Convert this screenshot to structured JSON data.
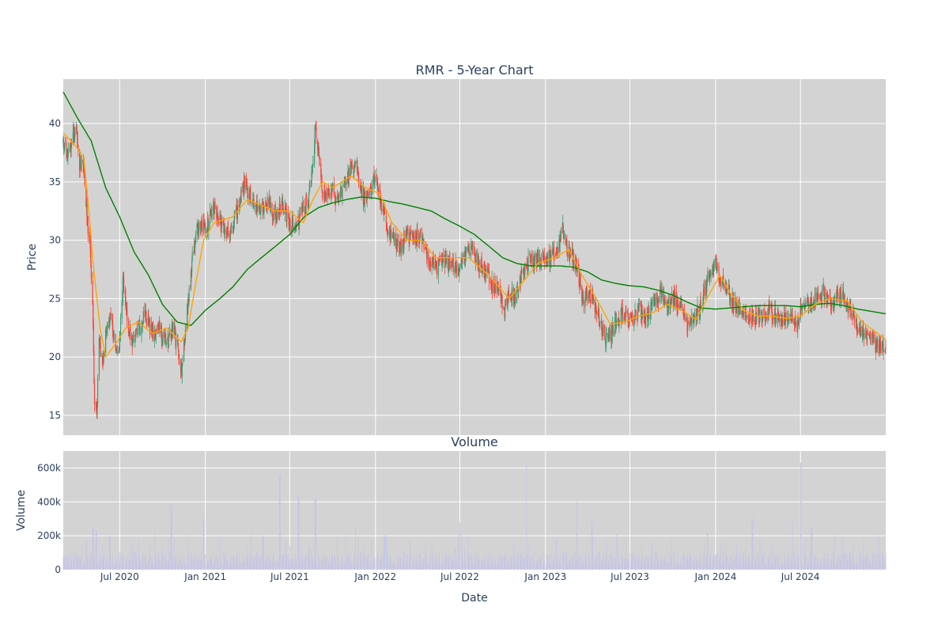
{
  "chart_data": [
    {
      "type": "candlestick",
      "title": "RMR - 5-Year Chart",
      "ylabel": "Price",
      "xlabel": "",
      "ylim": [
        13.3,
        43.8
      ],
      "x_range": [
        "2020-03-02",
        "2024-12-31"
      ],
      "y_ticks": [
        15,
        20,
        25,
        30,
        35,
        40
      ],
      "grid": true,
      "background": "#d3d3d3",
      "colors": {
        "up": "#3d9970",
        "down": "#ff4136",
        "ma_short": "#ffa500",
        "ma_long": "#008000"
      },
      "price_anchors": [
        [
          "2020-03-02",
          38.5
        ],
        [
          "2020-03-10",
          37.0
        ],
        [
          "2020-03-20",
          38.3
        ],
        [
          "2020-03-30",
          40.0
        ],
        [
          "2020-04-06",
          36.3
        ],
        [
          "2020-04-14",
          36.4
        ],
        [
          "2020-04-22",
          31.8
        ],
        [
          "2020-04-28",
          29.5
        ],
        [
          "2020-05-04",
          24.0
        ],
        [
          "2020-05-08",
          16.5
        ],
        [
          "2020-05-13",
          15.2
        ],
        [
          "2020-05-18",
          21.5
        ],
        [
          "2020-05-25",
          19.5
        ],
        [
          "2020-06-01",
          22.0
        ],
        [
          "2020-06-10",
          23.5
        ],
        [
          "2020-06-20",
          21.0
        ],
        [
          "2020-06-28",
          19.5
        ],
        [
          "2020-07-08",
          26.5
        ],
        [
          "2020-07-18",
          23.0
        ],
        [
          "2020-07-30",
          21.0
        ],
        [
          "2020-08-10",
          22.5
        ],
        [
          "2020-08-25",
          23.5
        ],
        [
          "2020-09-10",
          22.0
        ],
        [
          "2020-09-25",
          22.5
        ],
        [
          "2020-10-10",
          21.0
        ],
        [
          "2020-10-25",
          22.5
        ],
        [
          "2020-11-05",
          20.0
        ],
        [
          "2020-11-12",
          18.8
        ],
        [
          "2020-11-20",
          23.0
        ],
        [
          "2020-11-28",
          25.5
        ],
        [
          "2020-12-05",
          29.0
        ],
        [
          "2020-12-18",
          31.5
        ],
        [
          "2021-01-05",
          31.0
        ],
        [
          "2021-01-18",
          33.0
        ],
        [
          "2021-02-05",
          31.5
        ],
        [
          "2021-02-22",
          30.5
        ],
        [
          "2021-03-10",
          32.5
        ],
        [
          "2021-03-25",
          35.0
        ],
        [
          "2021-04-10",
          33.5
        ],
        [
          "2021-04-28",
          32.5
        ],
        [
          "2021-05-15",
          33.5
        ],
        [
          "2021-06-01",
          32.0
        ],
        [
          "2021-06-15",
          33.0
        ],
        [
          "2021-07-01",
          31.5
        ],
        [
          "2021-07-15",
          31.0
        ],
        [
          "2021-07-28",
          32.5
        ],
        [
          "2021-08-10",
          33.5
        ],
        [
          "2021-08-18",
          36.0
        ],
        [
          "2021-08-25",
          39.5
        ],
        [
          "2021-09-01",
          37.5
        ],
        [
          "2021-09-10",
          33.5
        ],
        [
          "2021-09-25",
          34.5
        ],
        [
          "2021-10-10",
          33.5
        ],
        [
          "2021-10-28",
          35.0
        ],
        [
          "2021-11-10",
          36.0
        ],
        [
          "2021-11-20",
          36.8
        ],
        [
          "2021-12-05",
          33.5
        ],
        [
          "2021-12-20",
          34.0
        ],
        [
          "2022-01-01",
          35.5
        ],
        [
          "2022-01-12",
          33.5
        ],
        [
          "2022-01-25",
          31.0
        ],
        [
          "2022-02-10",
          30.0
        ],
        [
          "2022-02-25",
          29.5
        ],
        [
          "2022-03-10",
          30.5
        ],
        [
          "2022-03-25",
          30.0
        ],
        [
          "2022-04-10",
          30.5
        ],
        [
          "2022-04-25",
          28.5
        ],
        [
          "2022-05-10",
          27.5
        ],
        [
          "2022-05-25",
          28.5
        ],
        [
          "2022-06-10",
          28.0
        ],
        [
          "2022-06-25",
          27.5
        ],
        [
          "2022-07-10",
          28.5
        ],
        [
          "2022-07-25",
          29.5
        ],
        [
          "2022-08-10",
          28.0
        ],
        [
          "2022-08-25",
          27.5
        ],
        [
          "2022-09-10",
          26.0
        ],
        [
          "2022-09-25",
          25.5
        ],
        [
          "2022-10-05",
          24.0
        ],
        [
          "2022-10-15",
          25.5
        ],
        [
          "2022-10-28",
          25.0
        ],
        [
          "2022-11-10",
          27.0
        ],
        [
          "2022-11-25",
          28.0
        ],
        [
          "2022-12-10",
          28.5
        ],
        [
          "2022-12-28",
          28.5
        ],
        [
          "2023-01-10",
          28.5
        ],
        [
          "2023-01-25",
          29.0
        ],
        [
          "2023-02-07",
          31.0
        ],
        [
          "2023-02-18",
          29.0
        ],
        [
          "2023-03-01",
          28.5
        ],
        [
          "2023-03-12",
          27.0
        ],
        [
          "2023-03-22",
          25.0
        ],
        [
          "2023-04-05",
          25.5
        ],
        [
          "2023-04-20",
          24.0
        ],
        [
          "2023-05-01",
          22.5
        ],
        [
          "2023-05-10",
          21.5
        ],
        [
          "2023-05-22",
          22.0
        ],
        [
          "2023-06-05",
          23.5
        ],
        [
          "2023-06-20",
          23.5
        ],
        [
          "2023-07-05",
          23.0
        ],
        [
          "2023-07-20",
          24.0
        ],
        [
          "2023-08-05",
          23.0
        ],
        [
          "2023-08-20",
          24.5
        ],
        [
          "2023-09-05",
          25.5
        ],
        [
          "2023-09-20",
          24.5
        ],
        [
          "2023-10-05",
          25.0
        ],
        [
          "2023-10-20",
          24.0
        ],
        [
          "2023-11-01",
          22.5
        ],
        [
          "2023-11-15",
          23.5
        ],
        [
          "2023-11-28",
          24.0
        ],
        [
          "2023-12-10",
          26.0
        ],
        [
          "2023-12-20",
          27.5
        ],
        [
          "2024-01-01",
          28.0
        ],
        [
          "2024-01-12",
          26.5
        ],
        [
          "2024-01-25",
          26.0
        ],
        [
          "2024-02-08",
          24.5
        ],
        [
          "2024-02-25",
          24.0
        ],
        [
          "2024-03-10",
          23.5
        ],
        [
          "2024-03-25",
          23.5
        ],
        [
          "2024-04-10",
          23.5
        ],
        [
          "2024-04-25",
          24.0
        ],
        [
          "2024-05-10",
          23.5
        ],
        [
          "2024-05-25",
          23.5
        ],
        [
          "2024-06-10",
          23.0
        ],
        [
          "2024-06-25",
          22.8
        ],
        [
          "2024-07-08",
          25.0
        ],
        [
          "2024-07-20",
          24.5
        ],
        [
          "2024-08-05",
          25.0
        ],
        [
          "2024-08-20",
          25.5
        ],
        [
          "2024-09-05",
          24.5
        ],
        [
          "2024-09-20",
          25.5
        ],
        [
          "2024-10-05",
          25.0
        ],
        [
          "2024-10-20",
          23.5
        ],
        [
          "2024-11-01",
          22.0
        ],
        [
          "2024-11-15",
          22.0
        ],
        [
          "2024-12-01",
          21.5
        ],
        [
          "2024-12-15",
          20.8
        ],
        [
          "2024-12-31",
          20.8
        ]
      ],
      "ma_short_anchors": [
        [
          "2020-03-02",
          39.2
        ],
        [
          "2020-03-30",
          38.0
        ],
        [
          "2020-04-15",
          37.0
        ],
        [
          "2020-04-25",
          33.0
        ],
        [
          "2020-05-05",
          28.0
        ],
        [
          "2020-05-20",
          22.5
        ],
        [
          "2020-06-01",
          20.0
        ],
        [
          "2020-06-20",
          21.0
        ],
        [
          "2020-07-15",
          22.5
        ],
        [
          "2020-08-10",
          23.0
        ],
        [
          "2020-09-10",
          22.0
        ],
        [
          "2020-10-10",
          22.5
        ],
        [
          "2020-11-10",
          21.3
        ],
        [
          "2020-11-25",
          22.5
        ],
        [
          "2020-12-10",
          26.0
        ],
        [
          "2020-12-28",
          30.0
        ],
        [
          "2021-01-20",
          31.5
        ],
        [
          "2021-03-01",
          32.0
        ],
        [
          "2021-04-01",
          33.5
        ],
        [
          "2021-05-01",
          33.0
        ],
        [
          "2021-06-01",
          32.5
        ],
        [
          "2021-07-01",
          32.5
        ],
        [
          "2021-07-30",
          31.5
        ],
        [
          "2021-08-20",
          33.5
        ],
        [
          "2021-09-10",
          35.0
        ],
        [
          "2021-10-01",
          34.5
        ],
        [
          "2021-11-10",
          35.5
        ],
        [
          "2021-12-10",
          34.5
        ],
        [
          "2022-01-10",
          34.0
        ],
        [
          "2022-02-05",
          31.5
        ],
        [
          "2022-03-10",
          30.0
        ],
        [
          "2022-04-10",
          30.0
        ],
        [
          "2022-05-10",
          28.5
        ],
        [
          "2022-06-10",
          28.5
        ],
        [
          "2022-07-20",
          28.5
        ],
        [
          "2022-09-01",
          27.0
        ],
        [
          "2022-10-15",
          25.0
        ],
        [
          "2022-11-15",
          26.5
        ],
        [
          "2022-12-15",
          28.0
        ],
        [
          "2023-01-20",
          28.5
        ],
        [
          "2023-02-20",
          29.2
        ],
        [
          "2023-03-20",
          27.0
        ],
        [
          "2023-04-20",
          25.0
        ],
        [
          "2023-05-20",
          22.8
        ],
        [
          "2023-06-20",
          23.0
        ],
        [
          "2023-07-20",
          23.5
        ],
        [
          "2023-08-20",
          23.8
        ],
        [
          "2023-09-20",
          24.5
        ],
        [
          "2023-10-20",
          24.0
        ],
        [
          "2023-11-20",
          23.2
        ],
        [
          "2023-12-20",
          25.5
        ],
        [
          "2024-01-10",
          27.0
        ],
        [
          "2024-02-01",
          25.5
        ],
        [
          "2024-03-01",
          24.0
        ],
        [
          "2024-04-01",
          23.5
        ],
        [
          "2024-05-01",
          23.5
        ],
        [
          "2024-06-01",
          23.3
        ],
        [
          "2024-07-01",
          23.5
        ],
        [
          "2024-08-01",
          24.5
        ],
        [
          "2024-09-01",
          25.0
        ],
        [
          "2024-10-10",
          24.8
        ],
        [
          "2024-11-10",
          23.0
        ],
        [
          "2024-12-31",
          21.5
        ]
      ],
      "ma_long_anchors": [
        [
          "2020-03-02",
          42.7
        ],
        [
          "2020-04-01",
          40.5
        ],
        [
          "2020-05-01",
          38.5
        ],
        [
          "2020-06-01",
          34.5
        ],
        [
          "2020-07-01",
          32.0
        ],
        [
          "2020-08-01",
          29.0
        ],
        [
          "2020-09-01",
          27.0
        ],
        [
          "2020-10-01",
          24.5
        ],
        [
          "2020-11-01",
          23.0
        ],
        [
          "2020-12-01",
          22.7
        ],
        [
          "2021-01-01",
          24.0
        ],
        [
          "2021-02-01",
          25.0
        ],
        [
          "2021-03-01",
          26.0
        ],
        [
          "2021-04-01",
          27.5
        ],
        [
          "2021-05-01",
          28.5
        ],
        [
          "2021-06-01",
          29.5
        ],
        [
          "2021-07-01",
          30.5
        ],
        [
          "2021-08-01",
          32.0
        ],
        [
          "2021-09-01",
          32.8
        ],
        [
          "2021-10-01",
          33.2
        ],
        [
          "2021-11-01",
          33.5
        ],
        [
          "2021-12-01",
          33.7
        ],
        [
          "2022-01-01",
          33.6
        ],
        [
          "2022-02-01",
          33.3
        ],
        [
          "2022-03-01",
          33.1
        ],
        [
          "2022-04-01",
          32.8
        ],
        [
          "2022-05-01",
          32.5
        ],
        [
          "2022-06-01",
          31.8
        ],
        [
          "2022-07-01",
          31.2
        ],
        [
          "2022-08-01",
          30.5
        ],
        [
          "2022-09-01",
          29.5
        ],
        [
          "2022-10-01",
          28.5
        ],
        [
          "2022-11-01",
          28.0
        ],
        [
          "2022-12-01",
          27.8
        ],
        [
          "2023-01-01",
          27.8
        ],
        [
          "2023-02-01",
          27.8
        ],
        [
          "2023-03-01",
          27.7
        ],
        [
          "2023-04-01",
          27.3
        ],
        [
          "2023-05-01",
          26.6
        ],
        [
          "2023-06-01",
          26.3
        ],
        [
          "2023-07-01",
          26.1
        ],
        [
          "2023-08-01",
          26.0
        ],
        [
          "2023-09-01",
          25.7
        ],
        [
          "2023-10-01",
          25.3
        ],
        [
          "2023-11-01",
          24.7
        ],
        [
          "2023-12-01",
          24.2
        ],
        [
          "2024-01-01",
          24.1
        ],
        [
          "2024-02-01",
          24.2
        ],
        [
          "2024-03-01",
          24.3
        ],
        [
          "2024-04-01",
          24.4
        ],
        [
          "2024-05-01",
          24.4
        ],
        [
          "2024-06-01",
          24.4
        ],
        [
          "2024-07-01",
          24.3
        ],
        [
          "2024-08-01",
          24.5
        ],
        [
          "2024-09-01",
          24.6
        ],
        [
          "2024-10-01",
          24.4
        ],
        [
          "2024-11-01",
          24.1
        ],
        [
          "2024-12-01",
          23.9
        ],
        [
          "2024-12-31",
          23.7
        ]
      ]
    },
    {
      "type": "bar",
      "title": "Volume",
      "ylabel": "Volume",
      "xlabel": "Date",
      "ylim": [
        0,
        700000
      ],
      "y_ticks": [
        0,
        200000,
        400000,
        600000
      ],
      "y_tick_labels": [
        "0",
        "200k",
        "400k",
        "600k"
      ],
      "x_ticks": [
        "2020-07-01",
        "2021-01-01",
        "2021-07-01",
        "2022-01-01",
        "2022-07-01",
        "2023-01-01",
        "2023-07-01",
        "2024-01-01",
        "2024-07-01"
      ],
      "x_tick_labels": [
        "Jul 2020",
        "Jan 2021",
        "Jul 2021",
        "Jan 2022",
        "Jul 2022",
        "Jan 2023",
        "Jul 2023",
        "Jan 2024",
        "Jul 2024"
      ],
      "bar_color": "#c6c6e6",
      "baseline_volume": 70000,
      "spikes": [
        [
          "2020-05-05",
          250000
        ],
        [
          "2020-05-12",
          230000
        ],
        [
          "2020-06-10",
          200000
        ],
        [
          "2020-10-20",
          380000
        ],
        [
          "2020-12-28",
          300000
        ],
        [
          "2021-05-05",
          200000
        ],
        [
          "2021-06-10",
          560000
        ],
        [
          "2021-07-20",
          440000
        ],
        [
          "2021-08-25",
          420000
        ],
        [
          "2021-11-20",
          260000
        ],
        [
          "2022-01-20",
          200000
        ],
        [
          "2022-07-01",
          280000
        ],
        [
          "2022-11-20",
          630000
        ],
        [
          "2023-03-10",
          400000
        ],
        [
          "2023-04-10",
          280000
        ],
        [
          "2023-12-15",
          220000
        ],
        [
          "2024-03-20",
          300000
        ],
        [
          "2024-06-15",
          290000
        ],
        [
          "2024-07-01",
          630000
        ],
        [
          "2024-07-25",
          250000
        ],
        [
          "2024-12-15",
          200000
        ]
      ]
    }
  ]
}
